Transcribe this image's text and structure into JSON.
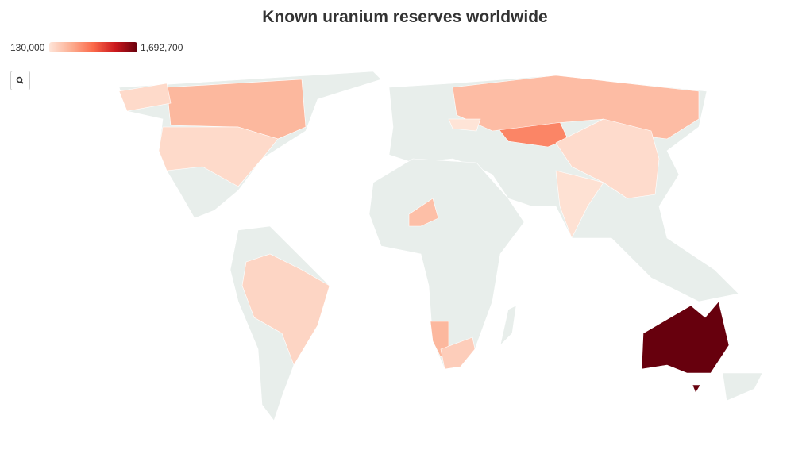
{
  "title": "Known uranium reserves worldwide",
  "legend": {
    "min": {
      "value": 130000,
      "label": "130,000"
    },
    "max": {
      "value": 1692700,
      "label": "1,692,700"
    },
    "colors": [
      "#fee5d9",
      "#fcae91",
      "#fb6a4a",
      "#cb181d",
      "#67000d"
    ]
  },
  "map": {
    "values": [
      1692700,
      755000,
      450000,
      420000,
      450000,
      400000,
      245000,
      200000,
      210000,
      300000,
      160000,
      140000
    ]
  }
}
